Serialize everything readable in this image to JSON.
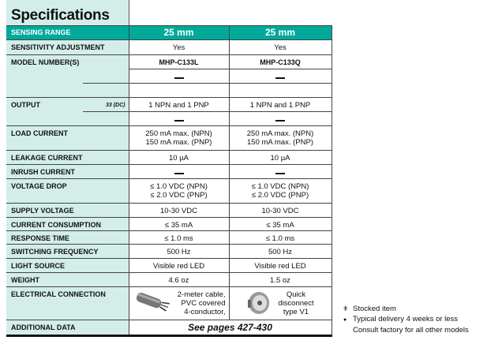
{
  "title": "Specifications",
  "header": {
    "label": "SENSING RANGE",
    "col1": "25 mm",
    "col2": "25 mm"
  },
  "rows": {
    "sensitivity": {
      "label": "SENSITIVITY ADJUSTMENT",
      "col1": "Yes",
      "col2": "Yes"
    },
    "model": {
      "label": "MODEL NUMBER(S)",
      "col1": "MHP-C133L",
      "col2": "MHP-C133Q"
    },
    "output": {
      "label": "OUTPUT",
      "sub": "33 (DC)",
      "col1": "1 NPN and 1 PNP",
      "col2": "1 NPN and 1 PNP"
    },
    "load": {
      "label": "LOAD CURRENT",
      "col1a": "250 mA max. (NPN)",
      "col1b": "150 mA max. (PNP)",
      "col2a": "250 mA max. (NPN)",
      "col2b": "150 mA max. (PNP)"
    },
    "leakage": {
      "label": "LEAKAGE CURRENT",
      "col1": "10 µA",
      "col2": "10 µA"
    },
    "inrush": {
      "label": "INRUSH CURRENT"
    },
    "vdrop": {
      "label": "VOLTAGE DROP",
      "col1a": "≤ 1.0 VDC (NPN)",
      "col1b": "≤ 2.0 VDC (PNP)",
      "col2a": "≤ 1.0 VDC (NPN)",
      "col2b": "≤ 2.0 VDC (PNP)"
    },
    "supply": {
      "label": "SUPPLY VOLTAGE",
      "col1": "10-30 VDC",
      "col2": "10-30 VDC"
    },
    "consumption": {
      "label": "CURRENT CONSUMPTION",
      "col1": "≤ 35 mA",
      "col2": "≤ 35 mA"
    },
    "response": {
      "label": "RESPONSE TIME",
      "col1": "≤ 1.0 ms",
      "col2": "≤ 1.0 ms"
    },
    "switching": {
      "label": "SWITCHING FREQUENCY",
      "col1": "500 Hz",
      "col2": "500 Hz"
    },
    "light": {
      "label": "LIGHT SOURCE",
      "col1": "Visible red LED",
      "col2": "Visible red LED"
    },
    "weight": {
      "label": "WEIGHT",
      "col1": "4.6 oz",
      "col2": "1.5 oz"
    },
    "electrical": {
      "label": "ELECTRICAL CONNECTION",
      "col1a": "2-meter cable,",
      "col1b": "PVC covered",
      "col1c": "4-conductor,",
      "col2a": "Quick",
      "col2b": "disconnect",
      "col2c": "type V1"
    },
    "additional": {
      "label": "ADDITIONAL DATA",
      "value": "See pages 427-430"
    }
  },
  "legend": {
    "stocked": "Stocked item",
    "delivery": "Typical delivery 4 weeks or less",
    "consult": "Consult factory for all other models",
    "stocked_symbol": "ǂ",
    "delivery_symbol": "●"
  },
  "colors": {
    "header": "#00a99a",
    "label_bg": "#d3eee9"
  }
}
